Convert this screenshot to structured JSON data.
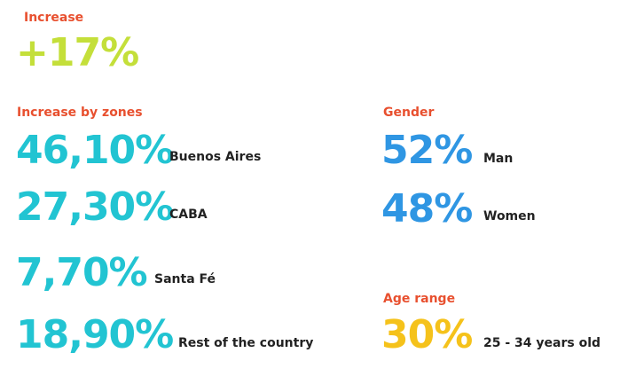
{
  "increase": {
    "label": "Increase",
    "value": "+17%"
  },
  "zones": {
    "label": "Increase by zones",
    "items": [
      {
        "value": "46,10%",
        "name": "Buenos Aires"
      },
      {
        "value": "27,30%",
        "name": "CABA"
      },
      {
        "value": "7,70%",
        "name": "Santa Fé"
      },
      {
        "value": "18,90%",
        "name": "Rest of the country"
      }
    ]
  },
  "gender": {
    "label": "Gender",
    "items": [
      {
        "value": "52%",
        "name": "Man"
      },
      {
        "value": "48%",
        "name": "Women"
      }
    ]
  },
  "age": {
    "label": "Age range",
    "value": "30%",
    "name": "25 - 34 years old"
  },
  "colors": {
    "label": "#e8502f",
    "increase": "#c4df3a",
    "zones": "#22c4d2",
    "gender": "#2f96e3",
    "age": "#f5c21b"
  }
}
